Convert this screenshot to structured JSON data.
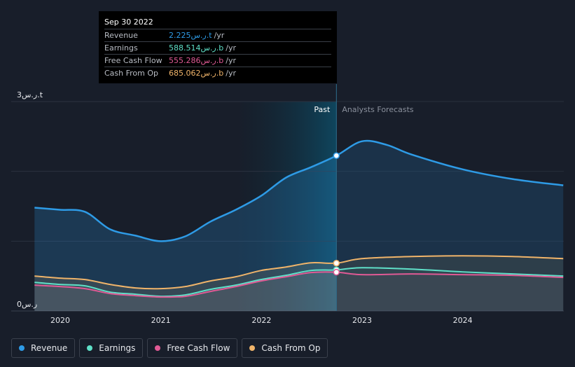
{
  "tooltip": {
    "date": "Sep 30 2022",
    "rows": [
      {
        "label": "Revenue",
        "value": "2.225ر.س.t",
        "unit": "/yr",
        "color": "#2e9be6"
      },
      {
        "label": "Earnings",
        "value": "588.514ر.س.b",
        "unit": "/yr",
        "color": "#5fe0c8"
      },
      {
        "label": "Free Cash Flow",
        "value": "555.286ر.س.b",
        "unit": "/yr",
        "color": "#e05a95"
      },
      {
        "label": "Cash From Op",
        "value": "685.062ر.س.b",
        "unit": "/yr",
        "color": "#f0b46a"
      }
    ]
  },
  "markers": {
    "past": "Past",
    "forecast": "Analysts Forecasts"
  },
  "legend": [
    {
      "label": "Revenue",
      "color": "#2e9be6"
    },
    {
      "label": "Earnings",
      "color": "#5fe0c8"
    },
    {
      "label": "Free Cash Flow",
      "color": "#e05a95"
    },
    {
      "label": "Cash From Op",
      "color": "#f0b46a"
    }
  ],
  "chart_data": {
    "type": "line",
    "title": "",
    "ylim": [
      0,
      3
    ],
    "y_ticks": [
      {
        "value": 0,
        "label": "0ر.س"
      },
      {
        "value": 3,
        "label": "3ر.س.t"
      }
    ],
    "x_ticks": [
      "2020",
      "2021",
      "2022",
      "2023",
      "2024"
    ],
    "grid": true,
    "past_until": "2022-09-30",
    "series": [
      {
        "name": "Revenue",
        "color": "#2e9be6",
        "points": [
          [
            "2019-09-30",
            1.48
          ],
          [
            "2019-12-31",
            1.45
          ],
          [
            "2020-03-31",
            1.42
          ],
          [
            "2020-06-30",
            1.17
          ],
          [
            "2020-09-30",
            1.08
          ],
          [
            "2020-12-31",
            1.0
          ],
          [
            "2021-03-31",
            1.07
          ],
          [
            "2021-06-30",
            1.28
          ],
          [
            "2021-09-30",
            1.45
          ],
          [
            "2021-12-31",
            1.65
          ],
          [
            "2022-03-31",
            1.91
          ],
          [
            "2022-06-30",
            2.06
          ],
          [
            "2022-09-30",
            2.225
          ],
          [
            "2022-12-31",
            2.43
          ],
          [
            "2023-03-31",
            2.38
          ],
          [
            "2023-06-30",
            2.24
          ],
          [
            "2023-12-31",
            2.03
          ],
          [
            "2024-06-30",
            1.89
          ],
          [
            "2024-12-31",
            1.8
          ]
        ]
      },
      {
        "name": "Earnings",
        "color": "#5fe0c8",
        "points": [
          [
            "2019-09-30",
            0.41
          ],
          [
            "2019-12-31",
            0.38
          ],
          [
            "2020-03-31",
            0.36
          ],
          [
            "2020-06-30",
            0.27
          ],
          [
            "2020-09-30",
            0.24
          ],
          [
            "2020-12-31",
            0.21
          ],
          [
            "2021-03-31",
            0.23
          ],
          [
            "2021-06-30",
            0.31
          ],
          [
            "2021-09-30",
            0.37
          ],
          [
            "2021-12-31",
            0.45
          ],
          [
            "2022-03-31",
            0.51
          ],
          [
            "2022-06-30",
            0.58
          ],
          [
            "2022-09-30",
            0.5885
          ],
          [
            "2022-12-31",
            0.62
          ],
          [
            "2023-06-30",
            0.6
          ],
          [
            "2023-12-31",
            0.56
          ],
          [
            "2024-06-30",
            0.53
          ],
          [
            "2024-12-31",
            0.5
          ]
        ]
      },
      {
        "name": "Free Cash Flow",
        "color": "#e05a95",
        "points": [
          [
            "2019-09-30",
            0.37
          ],
          [
            "2019-12-31",
            0.35
          ],
          [
            "2020-03-31",
            0.32
          ],
          [
            "2020-06-30",
            0.25
          ],
          [
            "2020-09-30",
            0.22
          ],
          [
            "2020-12-31",
            0.2
          ],
          [
            "2021-03-31",
            0.21
          ],
          [
            "2021-06-30",
            0.28
          ],
          [
            "2021-09-30",
            0.35
          ],
          [
            "2021-12-31",
            0.43
          ],
          [
            "2022-03-31",
            0.49
          ],
          [
            "2022-06-30",
            0.55
          ],
          [
            "2022-09-30",
            0.5553
          ],
          [
            "2022-12-31",
            0.52
          ],
          [
            "2023-06-30",
            0.53
          ],
          [
            "2023-12-31",
            0.52
          ],
          [
            "2024-06-30",
            0.51
          ],
          [
            "2024-12-31",
            0.48
          ]
        ]
      },
      {
        "name": "Cash From Op",
        "color": "#f0b46a",
        "points": [
          [
            "2019-09-30",
            0.5
          ],
          [
            "2019-12-31",
            0.47
          ],
          [
            "2020-03-31",
            0.45
          ],
          [
            "2020-06-30",
            0.38
          ],
          [
            "2020-09-30",
            0.33
          ],
          [
            "2020-12-31",
            0.32
          ],
          [
            "2021-03-31",
            0.35
          ],
          [
            "2021-06-30",
            0.43
          ],
          [
            "2021-09-30",
            0.49
          ],
          [
            "2021-12-31",
            0.58
          ],
          [
            "2022-03-31",
            0.63
          ],
          [
            "2022-06-30",
            0.69
          ],
          [
            "2022-09-30",
            0.685
          ],
          [
            "2022-12-31",
            0.75
          ],
          [
            "2023-06-30",
            0.78
          ],
          [
            "2023-12-31",
            0.79
          ],
          [
            "2024-06-30",
            0.78
          ],
          [
            "2024-12-31",
            0.75
          ]
        ]
      }
    ]
  }
}
